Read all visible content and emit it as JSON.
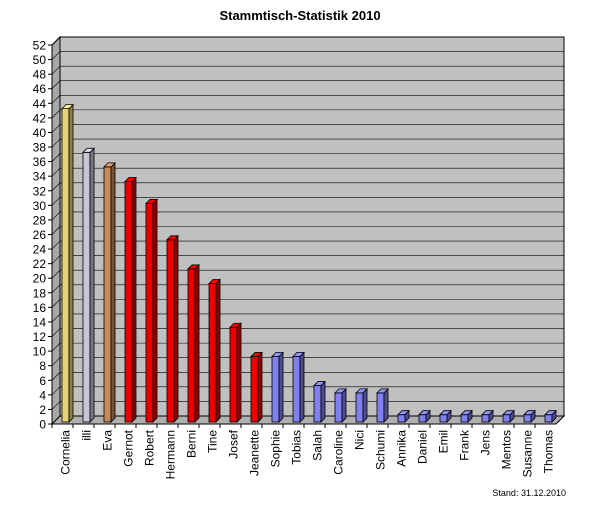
{
  "chart_data": {
    "type": "bar",
    "title": "Stammtisch-Statistik 2010",
    "xlabel": "",
    "ylabel": "",
    "ylim": [
      0,
      52
    ],
    "ytick_step": 2,
    "grid": true,
    "categories": [
      "Cornelia",
      "illi",
      "Eva",
      "Gernot",
      "Robert",
      "Hermann",
      "Berni",
      "Tine",
      "Josef",
      "Jeanette",
      "Sophie",
      "Tobias",
      "Salah",
      "Caroline",
      "Nici",
      "Schumi",
      "Annika",
      "Daniel",
      "Emil",
      "Frank",
      "Jens",
      "Mentos",
      "Susanne",
      "Thomas"
    ],
    "values": [
      43,
      37,
      35,
      33,
      30,
      25,
      21,
      19,
      13,
      9,
      9,
      9,
      5,
      4,
      4,
      4,
      1,
      1,
      1,
      1,
      1,
      1,
      1,
      1
    ],
    "colors": [
      "#e8d27a",
      "#c6c8d8",
      "#c98a5a",
      "#ee0000",
      "#ee0000",
      "#ee0000",
      "#ee0000",
      "#ee0000",
      "#ee0000",
      "#ee0000",
      "#8080f0",
      "#8080f0",
      "#8080f0",
      "#8080f0",
      "#8080f0",
      "#8080f0",
      "#8080f0",
      "#8080f0",
      "#8080f0",
      "#8080f0",
      "#8080f0",
      "#8080f0",
      "#8080f0",
      "#8080f0"
    ],
    "plot_background": "#c0c0c0"
  },
  "footer": {
    "note": "Stand: 31.12.2010"
  }
}
